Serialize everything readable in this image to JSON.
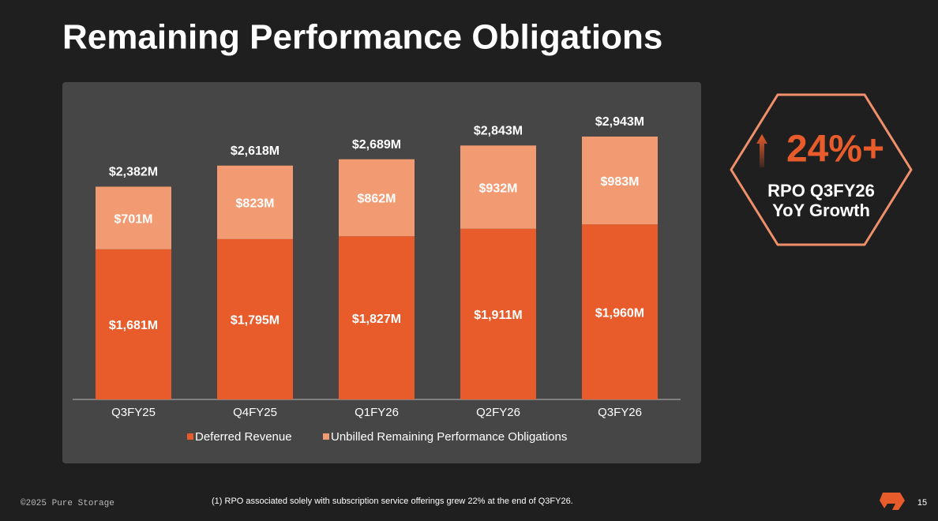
{
  "chart_data": {
    "type": "stacked_bar",
    "title": "Remaining Performance Obligations",
    "categories": [
      "Q3FY25",
      "Q4FY25",
      "Q1FY26",
      "Q2FY26",
      "Q3FY26"
    ],
    "series": [
      {
        "name": "Deferred Revenue",
        "color": "#e85c2c",
        "values": [
          1681,
          1795,
          1827,
          1911,
          1960
        ],
        "value_labels": [
          "$1,681M",
          "$1,795M",
          "$1,827M",
          "$1,911M",
          "$1,960M"
        ]
      },
      {
        "name": "Unbilled Remaining Performance Obligations",
        "color": "#f29b72",
        "values": [
          701,
          823,
          862,
          932,
          983
        ],
        "value_labels": [
          "$701M",
          "$823M",
          "$862M",
          "$932M",
          "$983M"
        ]
      }
    ],
    "totals": {
      "values": [
        2382,
        2618,
        2689,
        2843,
        2943
      ],
      "value_labels": [
        "$2,382M",
        "$2,618M",
        "$2,689M",
        "$2,843M",
        "$2,943M"
      ]
    },
    "legend": "bottom"
  },
  "callout": {
    "headline": "24%+",
    "lines": [
      "RPO Q3FY26",
      "YoY Growth"
    ]
  },
  "footer": {
    "copyright": "©2025 Pure Storage",
    "footnote": "(1) RPO associated solely with subscription service offerings grew 22% at the end of Q3FY26.",
    "page": "15"
  }
}
